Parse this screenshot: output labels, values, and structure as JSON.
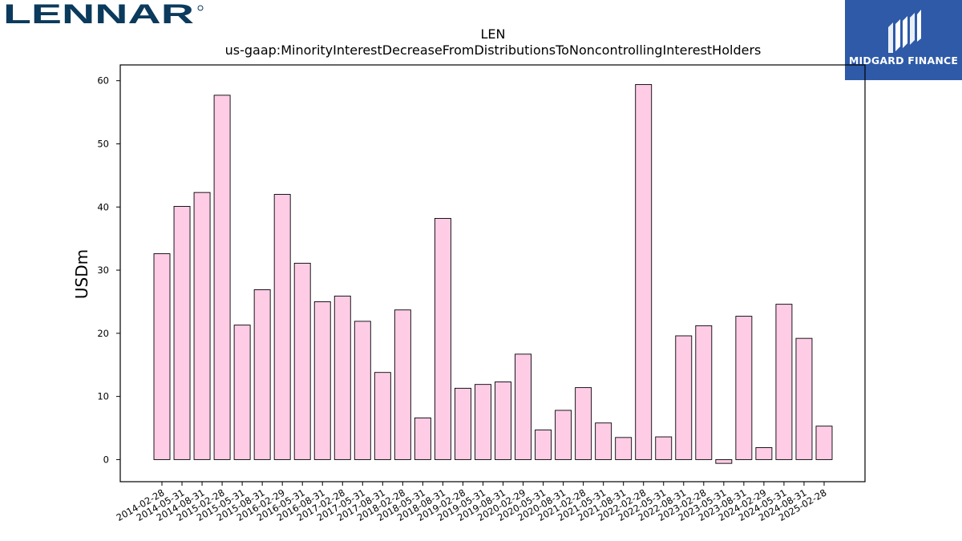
{
  "branding": {
    "left_logo_text": "LENNAR",
    "right_logo_text": "MIDGARD FINANCE"
  },
  "colors": {
    "bar_fill": "#ffcce6",
    "bar_stroke": "#000000",
    "lennar_blue": "#0b3a5c",
    "midgard_blue": "#2e5aa8"
  },
  "chart_data": {
    "type": "bar",
    "title": "LEN",
    "subtitle": "us-gaap:MinorityInterestDecreaseFromDistributionsToNoncontrollingInterestHolders",
    "xlabel": "",
    "ylabel": "USDm",
    "ylim": [
      -3.5,
      62.5
    ],
    "yticks": [
      0,
      10,
      20,
      30,
      40,
      50,
      60
    ],
    "grid": false,
    "categories": [
      "2014-02-28",
      "2014-05-31",
      "2014-08-31",
      "2015-02-28",
      "2015-05-31",
      "2015-08-31",
      "2016-02-29",
      "2016-05-31",
      "2016-08-31",
      "2017-02-28",
      "2017-05-31",
      "2017-08-31",
      "2018-02-28",
      "2018-05-31",
      "2018-08-31",
      "2019-02-28",
      "2019-05-31",
      "2019-08-31",
      "2020-02-29",
      "2020-05-31",
      "2020-08-31",
      "2021-02-28",
      "2021-05-31",
      "2021-08-31",
      "2022-02-28",
      "2022-05-31",
      "2022-08-31",
      "2023-02-28",
      "2023-05-31",
      "2023-08-31",
      "2024-02-29",
      "2024-05-31",
      "2024-08-31",
      "2025-02-28"
    ],
    "values": [
      32.6,
      40.1,
      42.3,
      57.7,
      21.3,
      26.9,
      42.0,
      31.1,
      25.0,
      25.9,
      21.9,
      13.8,
      23.7,
      6.6,
      38.2,
      11.3,
      11.9,
      12.3,
      16.7,
      4.7,
      7.8,
      11.4,
      5.8,
      3.5,
      59.4,
      3.6,
      19.6,
      21.2,
      -0.6,
      22.7,
      1.9,
      24.6,
      19.2,
      5.3
    ]
  }
}
